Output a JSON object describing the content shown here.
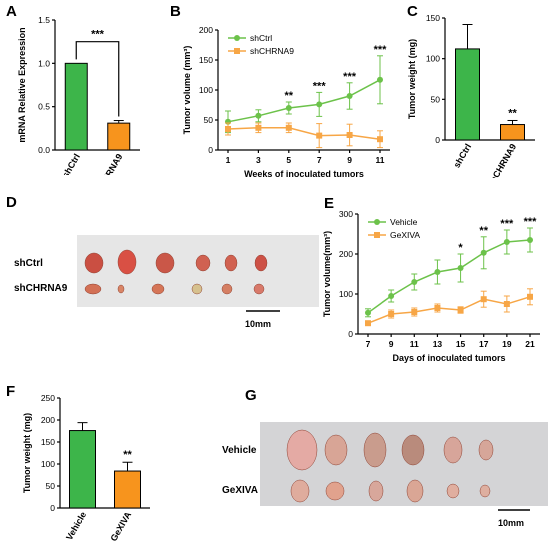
{
  "panel_letters": {
    "A": "A",
    "B": "B",
    "C": "C",
    "D": "D",
    "E": "E",
    "F": "F",
    "G": "G"
  },
  "colors": {
    "green": "#3db54a",
    "orange": "#f7941d",
    "line_green": "#6cc24a",
    "line_orange": "#f7a646"
  },
  "chart_data": [
    {
      "panel": "A",
      "type": "bar",
      "ylabel": "mRNA Relative Expression",
      "categories": [
        "shCtrl",
        "shCHRNA9"
      ],
      "values": [
        1.0,
        0.31
      ],
      "errors": [
        0,
        0.03
      ],
      "colors": [
        "#3db54a",
        "#f7941d"
      ],
      "ylim": [
        0,
        1.5
      ],
      "yticks": [
        "0.0",
        "0.5",
        "1.0",
        "1.5"
      ],
      "significance": "***"
    },
    {
      "panel": "B",
      "type": "line",
      "ylabel": "Tumor volume (mm³)",
      "xlabel": "Weeks of inoculated tumors",
      "x": [
        1,
        3,
        5,
        7,
        9,
        11
      ],
      "xticks": [
        "1",
        "3",
        "5",
        "7",
        "9",
        "11"
      ],
      "ylim": [
        0,
        200
      ],
      "yticks": [
        "0",
        "50",
        "100",
        "150",
        "200"
      ],
      "legend_position": "top-left",
      "series": [
        {
          "name": "shCtrl",
          "color": "#6cc24a",
          "values": [
            47,
            57,
            70,
            76,
            90,
            117
          ],
          "errors": [
            18,
            10,
            10,
            20,
            22,
            40
          ]
        },
        {
          "name": "shCHRNA9",
          "color": "#f7a646",
          "values": [
            35,
            37,
            37,
            24,
            25,
            18
          ],
          "errors": [
            10,
            8,
            8,
            20,
            18,
            14
          ]
        }
      ],
      "significance": [
        "",
        "",
        "**",
        "***",
        "***",
        "***"
      ]
    },
    {
      "panel": "C",
      "type": "bar",
      "ylabel": "Tumor weight (mg)",
      "categories": [
        "shCtrl",
        "shCHRNA9"
      ],
      "values": [
        112,
        19
      ],
      "errors": [
        30,
        5
      ],
      "colors": [
        "#3db54a",
        "#f7941d"
      ],
      "ylim": [
        0,
        150
      ],
      "yticks": [
        "0",
        "50",
        "100",
        "150"
      ],
      "significance": "**"
    },
    {
      "panel": "E",
      "type": "line",
      "ylabel": "Tumor volume(mm³)",
      "xlabel": "Days of inoculated tumors",
      "x": [
        7,
        9,
        11,
        13,
        15,
        17,
        19,
        21
      ],
      "xticks": [
        "7",
        "9",
        "11",
        "13",
        "15",
        "17",
        "19",
        "21"
      ],
      "ylim": [
        0,
        300
      ],
      "yticks": [
        "0",
        "100",
        "200",
        "300"
      ],
      "legend_position": "top-left",
      "series": [
        {
          "name": "Vehicle",
          "color": "#6cc24a",
          "values": [
            53,
            95,
            130,
            155,
            165,
            203,
            230,
            235
          ],
          "errors": [
            10,
            15,
            20,
            30,
            35,
            40,
            30,
            30
          ]
        },
        {
          "name": "GeXIVA",
          "color": "#f7a646",
          "values": [
            27,
            50,
            55,
            65,
            60,
            87,
            75,
            93
          ],
          "errors": [
            5,
            10,
            10,
            10,
            8,
            20,
            20,
            20
          ]
        }
      ],
      "significance": [
        "",
        "",
        "",
        "",
        "*",
        "**",
        "***",
        "***"
      ]
    },
    {
      "panel": "F",
      "type": "bar",
      "ylabel": "Tumor weight (mg)",
      "categories": [
        "Vehicle",
        "GeXIVA"
      ],
      "values": [
        176,
        84
      ],
      "errors": [
        18,
        20
      ],
      "colors": [
        "#3db54a",
        "#f7941d"
      ],
      "ylim": [
        0,
        250
      ],
      "yticks": [
        "0",
        "50",
        "100",
        "150",
        "200",
        "250"
      ],
      "significance": "**"
    }
  ],
  "photo_D": {
    "rows": [
      "shCtrl",
      "shCHRNA9"
    ],
    "scale_bar": "10mm"
  },
  "photo_G": {
    "rows": [
      "Vehicle",
      "GeXIVA"
    ],
    "scale_bar": "10mm"
  }
}
